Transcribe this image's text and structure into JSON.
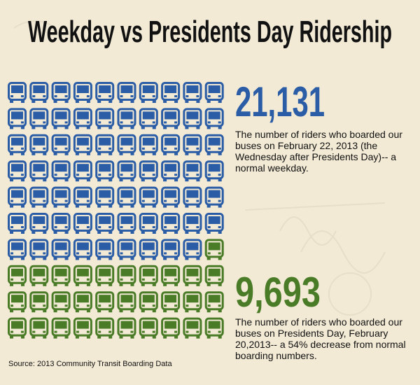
{
  "title": "Weekday vs Presidents Day Ridership",
  "stats": [
    {
      "value": "21,131",
      "color": "#2a5da6",
      "description": "The number of riders who boarded our buses on February 22, 2013 (the Wednesday after Presidents Day)-- a normal weekday."
    },
    {
      "value": "9,693",
      "color": "#4a7c28",
      "description": "The number of riders who boarded our buses on Presidents Day, February 20,2013-- a 54% decrease from normal boarding numbers."
    }
  ],
  "source": "Source: 2013 Community Transit Boarding Data"
}
